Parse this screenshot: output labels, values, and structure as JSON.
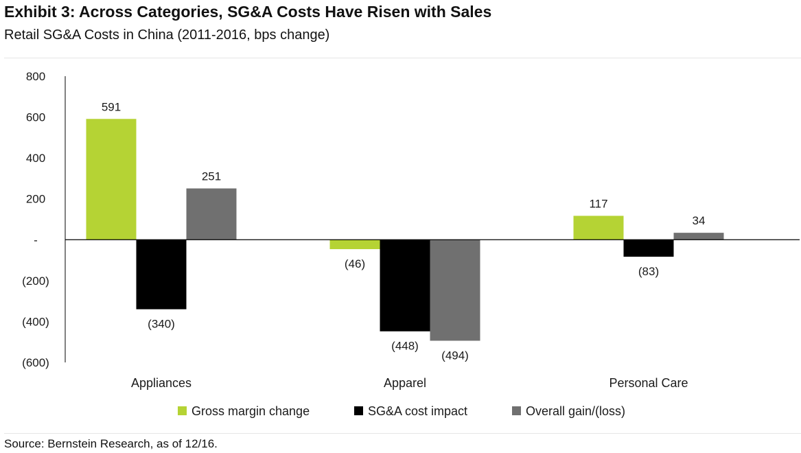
{
  "title": "Exhibit 3: Across Categories,  SG&A Costs Have Risen with Sales",
  "subtitle": "Retail SG&A Costs in China (2011-2016, bps change)",
  "source": "Source: Bernstein Research, as of 12/16.",
  "chart_data": {
    "type": "bar",
    "categories": [
      "Appliances",
      "Apparel",
      "Personal Care"
    ],
    "series": [
      {
        "name": "Gross margin change",
        "values": [
          591,
          -46,
          117
        ],
        "labels": [
          "591",
          "(46)",
          "117"
        ],
        "color": "#b5d334"
      },
      {
        "name": "SG&A cost impact",
        "values": [
          -340,
          -448,
          -83
        ],
        "labels": [
          "(340)",
          "(448)",
          "(83)"
        ],
        "color": "#000000"
      },
      {
        "name": "Overall gain/(loss)",
        "values": [
          251,
          -494,
          34
        ],
        "labels": [
          "251",
          "(494)",
          "34"
        ],
        "color": "#707070"
      }
    ],
    "ylim": [
      -600,
      800
    ],
    "yticks": [
      800,
      600,
      400,
      200,
      0,
      -200,
      -400,
      -600
    ],
    "ytick_labels": [
      "800",
      "600",
      "400",
      "200",
      "-",
      "(200)",
      "(400)",
      "(600)"
    ],
    "xlabel": "",
    "ylabel": "",
    "grid": false,
    "legend": "bottom"
  }
}
